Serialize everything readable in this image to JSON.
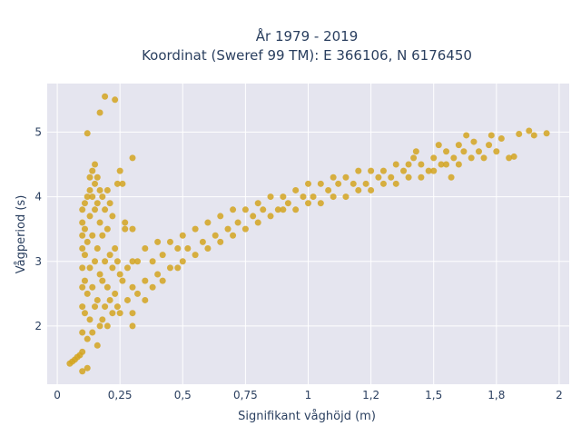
{
  "chart_data": {
    "type": "scatter",
    "title": "År 1979 - 2019",
    "subtitle": "Koordinat (Sweref 99 TM): E 366106, N 6176450",
    "xlabel": "Signifikant våghöjd (m)",
    "ylabel": "Vågperiod (s)",
    "xlim": [
      -0.04,
      2.04
    ],
    "ylim": [
      1.1,
      5.75
    ],
    "x_ticks": [
      {
        "value": 0,
        "label": "0"
      },
      {
        "value": 0.25,
        "label": "0,25"
      },
      {
        "value": 0.5,
        "label": "0,5"
      },
      {
        "value": 0.75,
        "label": "0,75"
      },
      {
        "value": 1,
        "label": "1"
      },
      {
        "value": 1.25,
        "label": "1,2"
      },
      {
        "value": 1.5,
        "label": "1,5"
      },
      {
        "value": 1.75,
        "label": "1,8"
      },
      {
        "value": 2,
        "label": "2"
      }
    ],
    "y_ticks": [
      {
        "value": 2,
        "label": "2"
      },
      {
        "value": 3,
        "label": "3"
      },
      {
        "value": 4,
        "label": "4"
      },
      {
        "value": 5,
        "label": "5"
      }
    ],
    "grid": true,
    "marker_color": "#D4A520",
    "plot_bg": "#E5E5EF",
    "series": [
      {
        "values": [
          {
            "x": 0.05,
            "y": 1.42
          },
          {
            "x": 0.06,
            "y": 1.45
          },
          {
            "x": 0.07,
            "y": 1.48
          },
          {
            "x": 0.08,
            "y": 1.52
          },
          {
            "x": 0.09,
            "y": 1.55
          },
          {
            "x": 0.1,
            "y": 1.3
          },
          {
            "x": 0.1,
            "y": 1.6
          },
          {
            "x": 0.1,
            "y": 1.9
          },
          {
            "x": 0.1,
            "y": 2.3
          },
          {
            "x": 0.1,
            "y": 2.6
          },
          {
            "x": 0.1,
            "y": 2.9
          },
          {
            "x": 0.1,
            "y": 3.2
          },
          {
            "x": 0.1,
            "y": 3.4
          },
          {
            "x": 0.1,
            "y": 3.6
          },
          {
            "x": 0.1,
            "y": 3.8
          },
          {
            "x": 0.11,
            "y": 3.9
          },
          {
            "x": 0.11,
            "y": 3.5
          },
          {
            "x": 0.11,
            "y": 3.1
          },
          {
            "x": 0.11,
            "y": 2.7
          },
          {
            "x": 0.11,
            "y": 2.2
          },
          {
            "x": 0.12,
            "y": 4.0
          },
          {
            "x": 0.12,
            "y": 3.3
          },
          {
            "x": 0.12,
            "y": 2.5
          },
          {
            "x": 0.12,
            "y": 1.8
          },
          {
            "x": 0.12,
            "y": 1.35
          },
          {
            "x": 0.13,
            "y": 4.1
          },
          {
            "x": 0.13,
            "y": 4.3
          },
          {
            "x": 0.13,
            "y": 3.7
          },
          {
            "x": 0.13,
            "y": 2.9
          },
          {
            "x": 0.13,
            "y": 2.1
          },
          {
            "x": 0.14,
            "y": 4.4
          },
          {
            "x": 0.14,
            "y": 4.0
          },
          {
            "x": 0.14,
            "y": 3.4
          },
          {
            "x": 0.14,
            "y": 2.6
          },
          {
            "x": 0.14,
            "y": 1.9
          },
          {
            "x": 0.15,
            "y": 4.5
          },
          {
            "x": 0.15,
            "y": 4.2
          },
          {
            "x": 0.15,
            "y": 3.8
          },
          {
            "x": 0.15,
            "y": 3.0
          },
          {
            "x": 0.15,
            "y": 2.3
          },
          {
            "x": 0.16,
            "y": 4.3
          },
          {
            "x": 0.16,
            "y": 3.9
          },
          {
            "x": 0.16,
            "y": 3.2
          },
          {
            "x": 0.16,
            "y": 2.4
          },
          {
            "x": 0.16,
            "y": 1.7
          },
          {
            "x": 0.17,
            "y": 4.1
          },
          {
            "x": 0.17,
            "y": 3.6
          },
          {
            "x": 0.17,
            "y": 2.8
          },
          {
            "x": 0.17,
            "y": 2.0
          },
          {
            "x": 0.18,
            "y": 4.0
          },
          {
            "x": 0.18,
            "y": 3.4
          },
          {
            "x": 0.18,
            "y": 2.7
          },
          {
            "x": 0.18,
            "y": 2.1
          },
          {
            "x": 0.19,
            "y": 3.8
          },
          {
            "x": 0.19,
            "y": 3.0
          },
          {
            "x": 0.19,
            "y": 2.3
          },
          {
            "x": 0.2,
            "y": 4.1
          },
          {
            "x": 0.2,
            "y": 3.5
          },
          {
            "x": 0.2,
            "y": 2.6
          },
          {
            "x": 0.2,
            "y": 2.0
          },
          {
            "x": 0.21,
            "y": 3.9
          },
          {
            "x": 0.21,
            "y": 3.1
          },
          {
            "x": 0.21,
            "y": 2.4
          },
          {
            "x": 0.22,
            "y": 3.7
          },
          {
            "x": 0.22,
            "y": 2.9
          },
          {
            "x": 0.22,
            "y": 2.2
          },
          {
            "x": 0.23,
            "y": 3.2
          },
          {
            "x": 0.23,
            "y": 2.5
          },
          {
            "x": 0.24,
            "y": 3.0
          },
          {
            "x": 0.24,
            "y": 2.3
          },
          {
            "x": 0.25,
            "y": 4.4
          },
          {
            "x": 0.25,
            "y": 2.8
          },
          {
            "x": 0.25,
            "y": 2.2
          },
          {
            "x": 0.26,
            "y": 4.2
          },
          {
            "x": 0.26,
            "y": 2.7
          },
          {
            "x": 0.27,
            "y": 3.6
          },
          {
            "x": 0.28,
            "y": 2.9
          },
          {
            "x": 0.28,
            "y": 2.4
          },
          {
            "x": 0.3,
            "y": 3.5
          },
          {
            "x": 0.3,
            "y": 2.6
          },
          {
            "x": 0.3,
            "y": 2.2
          },
          {
            "x": 0.32,
            "y": 3.0
          },
          {
            "x": 0.32,
            "y": 2.5
          },
          {
            "x": 0.35,
            "y": 3.2
          },
          {
            "x": 0.35,
            "y": 2.7
          },
          {
            "x": 0.35,
            "y": 2.4
          },
          {
            "x": 0.38,
            "y": 3.0
          },
          {
            "x": 0.38,
            "y": 2.6
          },
          {
            "x": 0.4,
            "y": 3.3
          },
          {
            "x": 0.4,
            "y": 2.8
          },
          {
            "x": 0.42,
            "y": 3.1
          },
          {
            "x": 0.42,
            "y": 2.7
          },
          {
            "x": 0.45,
            "y": 3.3
          },
          {
            "x": 0.45,
            "y": 2.9
          },
          {
            "x": 0.48,
            "y": 3.2
          },
          {
            "x": 0.48,
            "y": 2.9
          },
          {
            "x": 0.5,
            "y": 3.4
          },
          {
            "x": 0.5,
            "y": 3.0
          },
          {
            "x": 0.52,
            "y": 3.2
          },
          {
            "x": 0.55,
            "y": 3.5
          },
          {
            "x": 0.55,
            "y": 3.1
          },
          {
            "x": 0.58,
            "y": 3.3
          },
          {
            "x": 0.6,
            "y": 3.6
          },
          {
            "x": 0.6,
            "y": 3.2
          },
          {
            "x": 0.63,
            "y": 3.4
          },
          {
            "x": 0.65,
            "y": 3.7
          },
          {
            "x": 0.65,
            "y": 3.3
          },
          {
            "x": 0.68,
            "y": 3.5
          },
          {
            "x": 0.7,
            "y": 3.8
          },
          {
            "x": 0.7,
            "y": 3.4
          },
          {
            "x": 0.72,
            "y": 3.6
          },
          {
            "x": 0.75,
            "y": 3.8
          },
          {
            "x": 0.75,
            "y": 3.5
          },
          {
            "x": 0.78,
            "y": 3.7
          },
          {
            "x": 0.8,
            "y": 3.9
          },
          {
            "x": 0.8,
            "y": 3.6
          },
          {
            "x": 0.82,
            "y": 3.8
          },
          {
            "x": 0.85,
            "y": 4.0
          },
          {
            "x": 0.85,
            "y": 3.7
          },
          {
            "x": 0.88,
            "y": 3.8
          },
          {
            "x": 0.9,
            "y": 4.0
          },
          {
            "x": 0.9,
            "y": 3.8
          },
          {
            "x": 0.92,
            "y": 3.9
          },
          {
            "x": 0.95,
            "y": 4.1
          },
          {
            "x": 0.95,
            "y": 3.8
          },
          {
            "x": 0.98,
            "y": 4.0
          },
          {
            "x": 1.0,
            "y": 4.2
          },
          {
            "x": 1.0,
            "y": 3.9
          },
          {
            "x": 1.02,
            "y": 4.0
          },
          {
            "x": 1.05,
            "y": 4.2
          },
          {
            "x": 1.05,
            "y": 3.9
          },
          {
            "x": 1.08,
            "y": 4.1
          },
          {
            "x": 1.1,
            "y": 4.3
          },
          {
            "x": 1.1,
            "y": 4.0
          },
          {
            "x": 1.12,
            "y": 4.2
          },
          {
            "x": 1.15,
            "y": 4.3
          },
          {
            "x": 1.15,
            "y": 4.0
          },
          {
            "x": 1.18,
            "y": 4.2
          },
          {
            "x": 1.2,
            "y": 4.4
          },
          {
            "x": 1.2,
            "y": 4.1
          },
          {
            "x": 1.23,
            "y": 4.2
          },
          {
            "x": 1.25,
            "y": 4.4
          },
          {
            "x": 1.25,
            "y": 4.1
          },
          {
            "x": 1.28,
            "y": 4.3
          },
          {
            "x": 1.3,
            "y": 4.4
          },
          {
            "x": 1.3,
            "y": 4.2
          },
          {
            "x": 1.33,
            "y": 4.3
          },
          {
            "x": 1.35,
            "y": 4.5
          },
          {
            "x": 1.35,
            "y": 4.2
          },
          {
            "x": 1.38,
            "y": 4.4
          },
          {
            "x": 1.4,
            "y": 4.5
          },
          {
            "x": 1.4,
            "y": 4.3
          },
          {
            "x": 1.42,
            "y": 4.6
          },
          {
            "x": 1.43,
            "y": 4.7
          },
          {
            "x": 1.45,
            "y": 4.5
          },
          {
            "x": 1.45,
            "y": 4.3
          },
          {
            "x": 1.48,
            "y": 4.4
          },
          {
            "x": 1.5,
            "y": 4.6
          },
          {
            "x": 1.5,
            "y": 4.4
          },
          {
            "x": 1.52,
            "y": 4.8
          },
          {
            "x": 1.53,
            "y": 4.5
          },
          {
            "x": 1.55,
            "y": 4.7
          },
          {
            "x": 1.55,
            "y": 4.5
          },
          {
            "x": 1.57,
            "y": 4.3
          },
          {
            "x": 1.58,
            "y": 4.6
          },
          {
            "x": 1.6,
            "y": 4.8
          },
          {
            "x": 1.6,
            "y": 4.5
          },
          {
            "x": 1.62,
            "y": 4.7
          },
          {
            "x": 1.63,
            "y": 4.95
          },
          {
            "x": 1.65,
            "y": 4.6
          },
          {
            "x": 1.66,
            "y": 4.85
          },
          {
            "x": 1.68,
            "y": 4.7
          },
          {
            "x": 1.7,
            "y": 4.6
          },
          {
            "x": 1.72,
            "y": 4.8
          },
          {
            "x": 1.73,
            "y": 4.95
          },
          {
            "x": 1.75,
            "y": 4.7
          },
          {
            "x": 1.77,
            "y": 4.9
          },
          {
            "x": 1.8,
            "y": 4.6
          },
          {
            "x": 1.82,
            "y": 4.62
          },
          {
            "x": 1.84,
            "y": 4.97
          },
          {
            "x": 1.88,
            "y": 5.02
          },
          {
            "x": 1.9,
            "y": 4.95
          },
          {
            "x": 1.95,
            "y": 4.98
          },
          {
            "x": 0.12,
            "y": 4.98
          },
          {
            "x": 0.17,
            "y": 5.3
          },
          {
            "x": 0.19,
            "y": 5.55
          },
          {
            "x": 0.23,
            "y": 5.5
          },
          {
            "x": 0.3,
            "y": 4.6
          },
          {
            "x": 0.24,
            "y": 4.2
          },
          {
            "x": 0.27,
            "y": 3.5
          },
          {
            "x": 0.3,
            "y": 3.0
          },
          {
            "x": 0.3,
            "y": 2.0
          }
        ]
      }
    ]
  }
}
